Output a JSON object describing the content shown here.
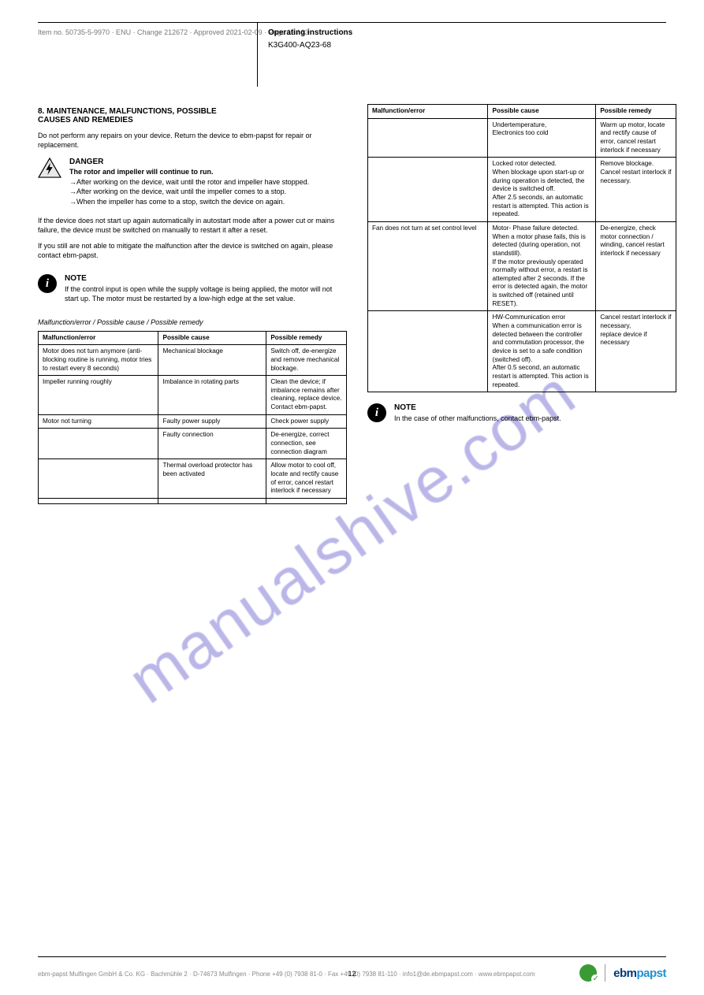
{
  "header": {
    "part_no": "Item no. 50735-5-9970 · ENU · Change 212672 · Approved 2021-02-09 · Page 12 / 13",
    "title": "Operating instructions",
    "model": "K3G400-AQ23-68",
    "company_footer": "ebm-papst Mulfingen GmbH & Co. KG · Bachmühle 2 · D-74673 Mulfingen · Phone +49 (0) 7938 81-0 · Fax +49 (0) 7938 81-110 · info1@de.ebmpapst.com · www.ebmpapst.com",
    "page_label": "12"
  },
  "watermark_text": "manualshive.com",
  "section8": {
    "heading": "8. MAINTENANCE, MALFUNCTIONS, POSSIBLE\nCAUSES AND REMEDIES",
    "body": "Do not perform any repairs on your device. Return the device to ebm-papst for repair or replacement.",
    "danger": {
      "word": "DANGER",
      "line1": "The rotor and impeller will continue to run.",
      "text1": "After working on the device, wait until the rotor and impeller have stopped.",
      "text2": "After working on the device, wait until the impeller comes to a stop.",
      "text3": "When the impeller has come to a stop, switch the device on again."
    },
    "p2": "If the device does not start up again automatically in autostart mode after a power cut or mains failure, the device must be switched on manually to restart it after a reset.",
    "p3": "If you still are not able to mitigate the malfunction after the device is switched on again, please contact ebm-papst.",
    "note": {
      "word": "NOTE",
      "text": "If the control input is open while the supply voltage is being applied, the motor will not start up. The motor must be restarted by a low-high edge at the set value."
    },
    "table_title": "Malfunction/error / Possible cause / Possible remedy",
    "table": {
      "headers": [
        "Malfunction/error",
        "Possible cause",
        "Possible remedy"
      ],
      "rows": [
        [
          "Motor does not turn anymore (anti-blocking routine is running, motor tries to restart every 8 seconds)",
          "Mechanical blockage",
          "Switch off, de-energize and remove mechanical blockage."
        ],
        [
          "Impeller running roughly",
          "Imbalance in rotating parts",
          "Clean the device; if imbalance remains after cleaning, replace device. Contact ebm-papst."
        ],
        [
          "Motor not turning",
          "Faulty power supply",
          "Check power supply"
        ],
        [
          "",
          "Faulty connection",
          "De-energize, correct connection, see connection diagram"
        ],
        [
          "",
          "Thermal overload protector has been activated",
          "Allow motor to cool off, locate and rectify cause of error, cancel restart interlock if necessary"
        ],
        [
          "",
          "",
          ""
        ]
      ]
    }
  },
  "table_right": {
    "headers": [
      "Malfunction/error",
      "Possible cause",
      "Possible remedy"
    ],
    "rows": [
      [
        "",
        "Undertemperature,\nElectronics too cold",
        "Warm up motor, locate and rectify cause of error, cancel restart interlock if necessary"
      ],
      [
        "",
        "Locked rotor detected.\nWhen blockage upon start-up or during operation is detected, the device is switched off.\nAfter 2.5 seconds, an automatic restart is attempted. This action is repeated.",
        "Remove blockage.\nCancel restart interlock if necessary."
      ],
      [
        "Fan does not turn at set control level",
        "Motor- Phase failure detected.\nWhen a motor phase fails, this is detected (during operation, not standstill).\nIf the motor previously operated normally without error, a restart is attempted after 2 seconds. If the error is detected again, the motor is switched off (retained until RESET).",
        "De-energize, check motor connection / winding, cancel restart interlock if necessary"
      ],
      [
        "",
        "HW-Communication error\nWhen a communication error is detected between the controller and commutation processor, the device is set to a safe condition (switched off).\nAfter 0.5 second, an automatic restart is attempted. This action is repeated.",
        "Cancel restart interlock if necessary,\nreplace device if necessary"
      ]
    ]
  },
  "note2": {
    "word": "NOTE",
    "text": "In the case of other malfunctions, contact ebm-papst."
  },
  "footer_logo": {
    "ebm": "ebm",
    "papst": "papst"
  }
}
